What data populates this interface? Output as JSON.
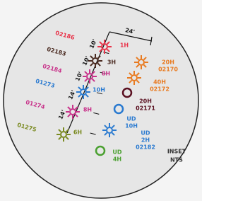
{
  "dimensions": {
    "top": "24'",
    "segments": [
      "10'",
      "10'",
      "10'",
      "14'",
      "14'"
    ]
  },
  "markers": [
    {
      "code": "02186",
      "label": "1H"
    },
    {
      "code": "02183",
      "label": "3H"
    },
    {
      "code": "02184",
      "label": "8H"
    },
    {
      "code": "01273",
      "label": "10H"
    },
    {
      "code": "01274",
      "label": "8H"
    },
    {
      "code": "01275",
      "label": "6H"
    }
  ],
  "right_markers": [
    {
      "lines": [
        "20H",
        "02170"
      ]
    },
    {
      "lines": [
        "40H",
        "02172"
      ]
    },
    {
      "lines": [
        "20H",
        "02171"
      ]
    },
    {
      "lines": [
        "UD",
        "10H"
      ]
    },
    {
      "lines": [
        "UD",
        "2H",
        "02182"
      ]
    },
    {
      "lines": [
        "UD",
        "4H"
      ]
    }
  ],
  "inset": {
    "line1": "INSET",
    "line2": "NTS"
  }
}
